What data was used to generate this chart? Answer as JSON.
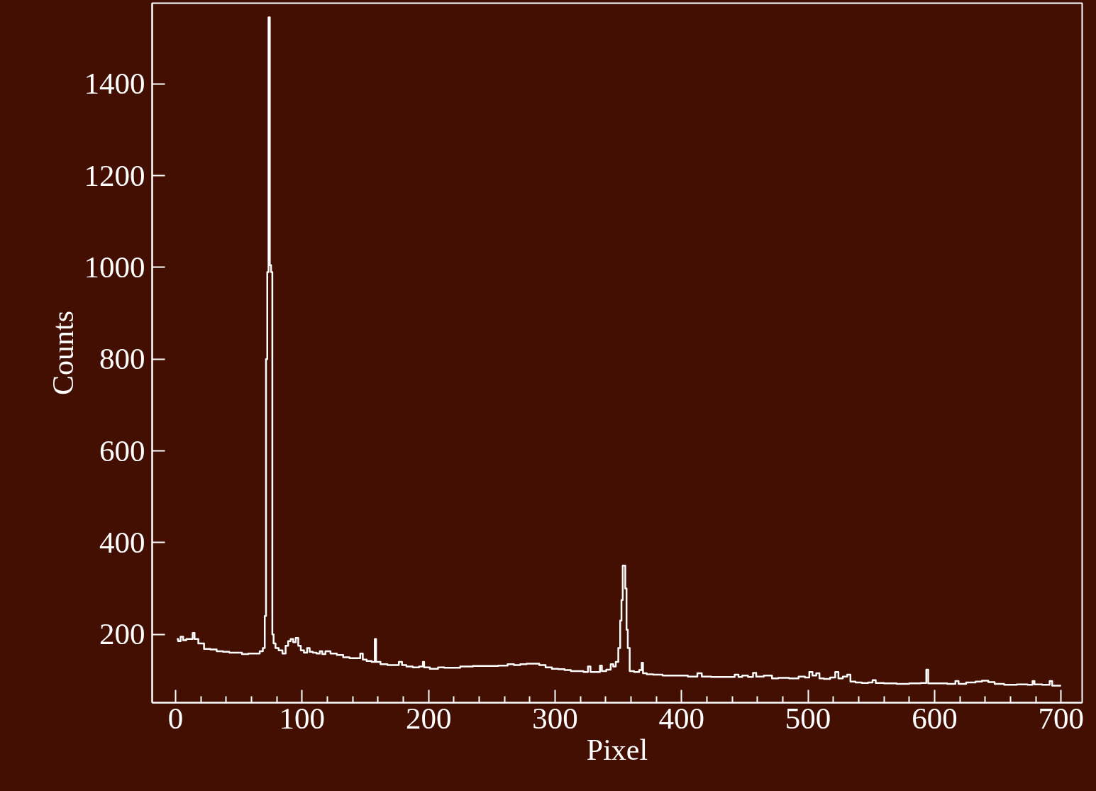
{
  "chart_data": {
    "type": "step",
    "xlabel": "Pixel",
    "ylabel": "Counts",
    "x": [
      1,
      3,
      5,
      7,
      10,
      13,
      14,
      16,
      20,
      25,
      30,
      35,
      40,
      45,
      50,
      55,
      60,
      65,
      68,
      70,
      71,
      72,
      73,
      74,
      75,
      76,
      77,
      78,
      80,
      83,
      86,
      88,
      90,
      92,
      94,
      96,
      98,
      100,
      103,
      105,
      107,
      110,
      113,
      115,
      117,
      120,
      125,
      130,
      135,
      140,
      145,
      147,
      149,
      153,
      157,
      158,
      159,
      165,
      170,
      175,
      178,
      180,
      185,
      190,
      195,
      196,
      197,
      205,
      210,
      215,
      220,
      230,
      240,
      250,
      260,
      265,
      270,
      275,
      280,
      285,
      290,
      295,
      300,
      305,
      310,
      315,
      320,
      325,
      327,
      329,
      335,
      336,
      338,
      343,
      345,
      347,
      349,
      351,
      352,
      353,
      354,
      355,
      356,
      357,
      358,
      360,
      365,
      368,
      369,
      370,
      375,
      380,
      390,
      400,
      410,
      415,
      417,
      430,
      440,
      444,
      446,
      450,
      455,
      458,
      460,
      470,
      473,
      480,
      490,
      495,
      500,
      502,
      505,
      508,
      510,
      515,
      520,
      523,
      525,
      530,
      532,
      535,
      540,
      545,
      550,
      552,
      555,
      565,
      575,
      585,
      593,
      594,
      596,
      605,
      615,
      618,
      620,
      630,
      635,
      640,
      645,
      650,
      660,
      670,
      677,
      678,
      680,
      690,
      692,
      694,
      700
    ],
    "values": [
      190,
      185,
      195,
      187,
      190,
      190,
      203,
      190,
      180,
      168,
      167,
      163,
      162,
      160,
      160,
      157,
      158,
      158,
      163,
      170,
      240,
      800,
      990,
      1545,
      1005,
      990,
      200,
      180,
      170,
      165,
      158,
      175,
      185,
      190,
      183,
      192,
      175,
      165,
      160,
      170,
      162,
      160,
      158,
      163,
      157,
      163,
      158,
      155,
      150,
      148,
      148,
      158,
      145,
      142,
      140,
      190,
      140,
      135,
      133,
      133,
      140,
      133,
      130,
      128,
      130,
      140,
      128,
      125,
      128,
      127,
      127,
      130,
      131,
      131,
      132,
      135,
      133,
      135,
      136,
      136,
      133,
      128,
      125,
      124,
      122,
      120,
      120,
      118,
      130,
      118,
      118,
      132,
      120,
      123,
      135,
      130,
      140,
      170,
      230,
      275,
      350,
      350,
      300,
      210,
      170,
      120,
      118,
      122,
      138,
      115,
      113,
      112,
      110,
      110,
      108,
      115,
      108,
      107,
      107,
      112,
      107,
      110,
      107,
      116,
      108,
      110,
      104,
      105,
      104,
      108,
      106,
      118,
      110,
      115,
      104,
      103,
      106,
      118,
      104,
      108,
      112,
      97,
      95,
      94,
      95,
      100,
      94,
      93,
      92,
      93,
      94,
      123,
      93,
      93,
      92,
      98,
      92,
      95,
      97,
      99,
      96,
      92,
      90,
      91,
      90,
      98,
      91,
      90,
      98,
      88,
      88
    ],
    "color": "#ffffff",
    "xlim": [
      -18.5,
      716.7
    ],
    "ylim": [
      51,
      1576
    ],
    "xticks": [
      0,
      100,
      200,
      300,
      400,
      500,
      600,
      700
    ],
    "yticks": [
      200,
      400,
      600,
      800,
      1000,
      1200,
      1400
    ],
    "grid": false
  }
}
